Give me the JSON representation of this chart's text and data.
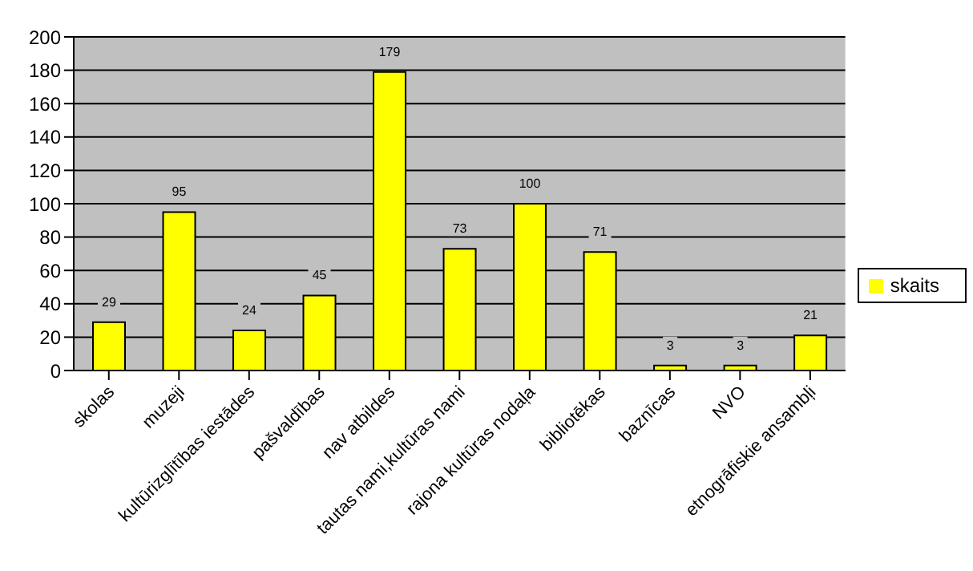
{
  "chart_data": {
    "type": "bar",
    "categories": [
      "skolas",
      "muzeji",
      "kultūrizglītības iestādes",
      "pašvaldības",
      "nav atbildes",
      "tautas nami,kultūras nami",
      "rajona kultūras nodaļa",
      "bibliotēkas",
      "baznīcas",
      "NVO",
      "etnogrāfiskie ansambļi"
    ],
    "series": [
      {
        "name": "skaits",
        "color": "#ffff00",
        "values": [
          29,
          95,
          24,
          45,
          179,
          73,
          100,
          71,
          3,
          3,
          21
        ]
      }
    ],
    "ylim": [
      0,
      200
    ],
    "yticks": [
      0,
      20,
      40,
      60,
      80,
      100,
      120,
      140,
      160,
      180,
      200
    ],
    "grid": "y",
    "legend": "right",
    "data_labels": true
  }
}
